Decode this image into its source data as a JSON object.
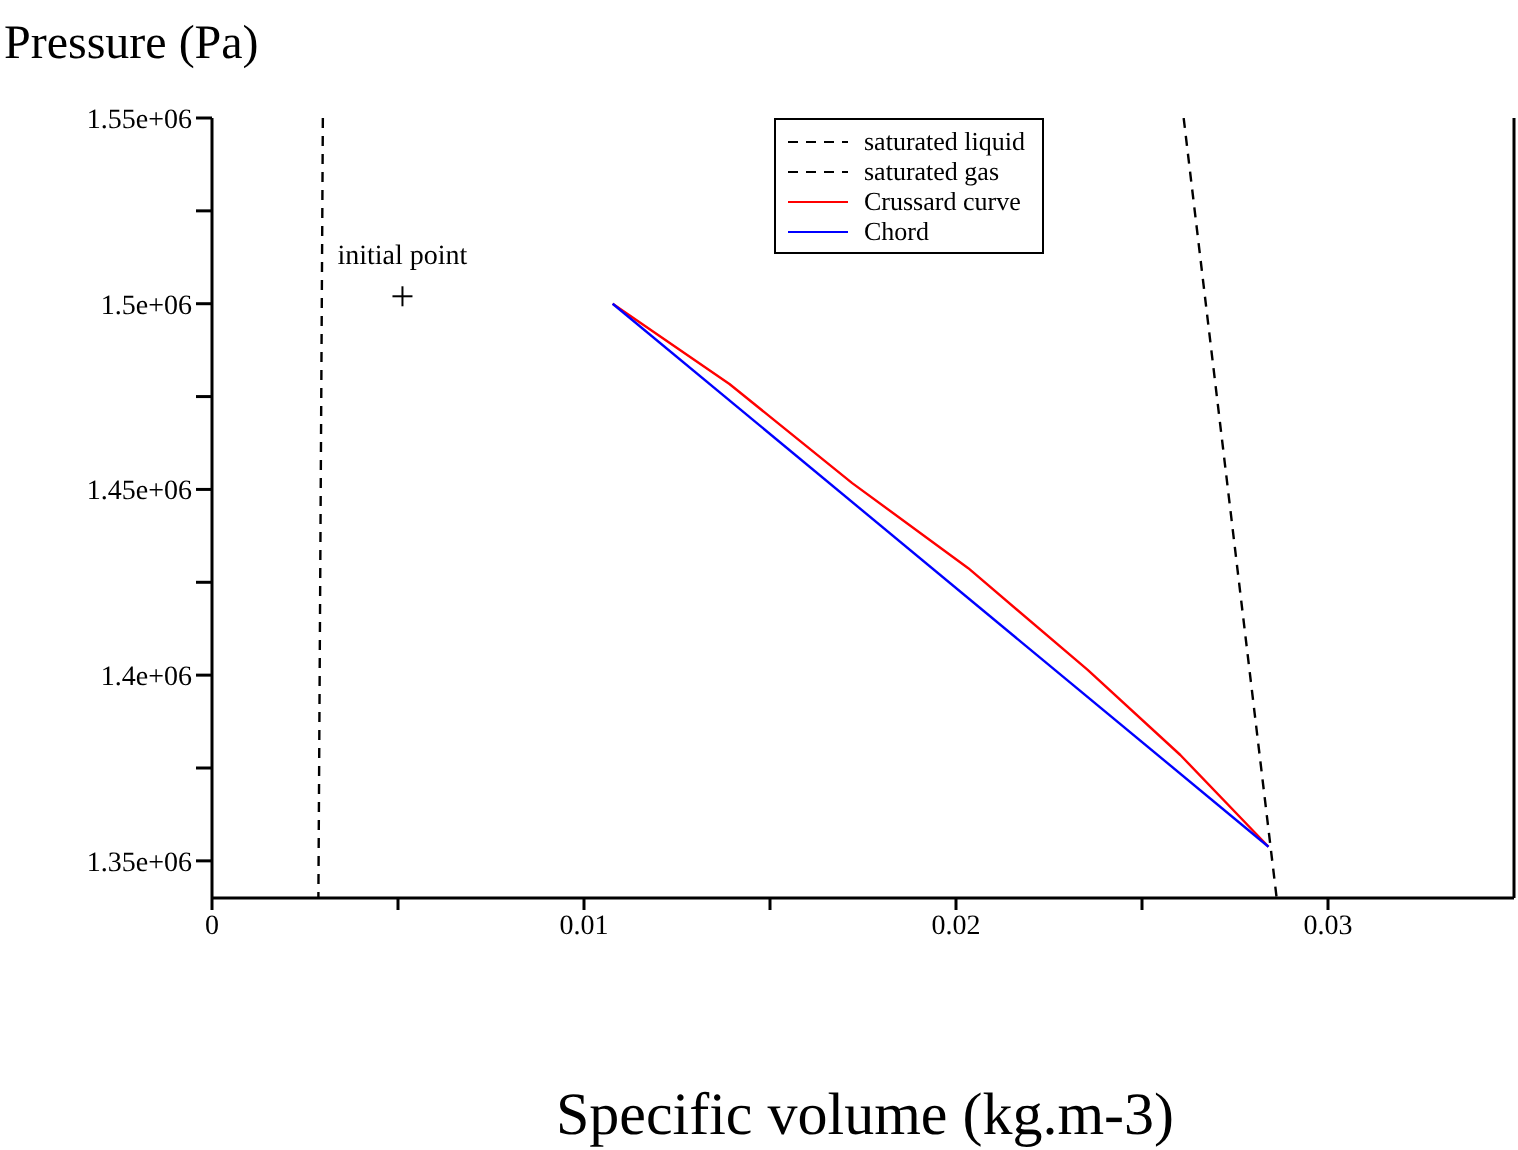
{
  "chart_data": {
    "type": "line",
    "xlabel": "Specific volume (kg.m-3)",
    "ylabel": "Pressure (Pa)",
    "xlim": [
      0,
      0.035
    ],
    "xticks": [
      0,
      {
        "value": 0.005,
        "label": null
      },
      0.01,
      {
        "value": 0.015,
        "label": null
      },
      0.02,
      {
        "value": 0.025,
        "label": null
      },
      0.03
    ],
    "ylim": [
      1340000,
      1550000
    ],
    "yticks": [
      {
        "value": 1350000,
        "label": "1.35e+06"
      },
      {
        "value": 1375000,
        "label": null
      },
      {
        "value": 1400000,
        "label": "1.4e+06"
      },
      {
        "value": 1425000,
        "label": null
      },
      {
        "value": 1450000,
        "label": "1.45e+06"
      },
      {
        "value": 1475000,
        "label": null
      },
      {
        "value": 1500000,
        "label": "1.5e+06"
      },
      {
        "value": 1525000,
        "label": null
      },
      {
        "value": 1550000,
        "label": "1.55e+06"
      }
    ],
    "grid": false,
    "legend": "top",
    "marker": "none",
    "annotations": [
      {
        "text": "initial point",
        "x": 0.00512,
        "y": 1502000
      }
    ],
    "series": [
      {
        "name": "saturated liquid",
        "color": "#000000",
        "line_style": "dashed",
        "x": [
          0.00298,
          0.00286
        ],
        "values": [
          1550000,
          1340000
        ]
      },
      {
        "name": "saturated gas",
        "color": "#000000",
        "line_style": "dashed",
        "x": [
          0.02612,
          0.02862
        ],
        "values": [
          1550000,
          1340000
        ]
      },
      {
        "name": "Crussard curve",
        "color": "#ff0000",
        "line_style": "solid",
        "x": [
          0.01077,
          0.01391,
          0.01721,
          0.02033,
          0.02354,
          0.02603,
          0.0284
        ],
        "values": [
          1500000,
          1478400,
          1451700,
          1428800,
          1401400,
          1378500,
          1353800
        ]
      },
      {
        "name": "Chord",
        "color": "#0000ff",
        "line_style": "solid",
        "x": [
          0.01077,
          0.0284
        ],
        "values": [
          1500000,
          1353800
        ]
      },
      {
        "type": "scatter",
        "marker": "cross",
        "color": "#000000",
        "x": [
          0.00512
        ],
        "values": [
          1502000
        ]
      }
    ]
  }
}
